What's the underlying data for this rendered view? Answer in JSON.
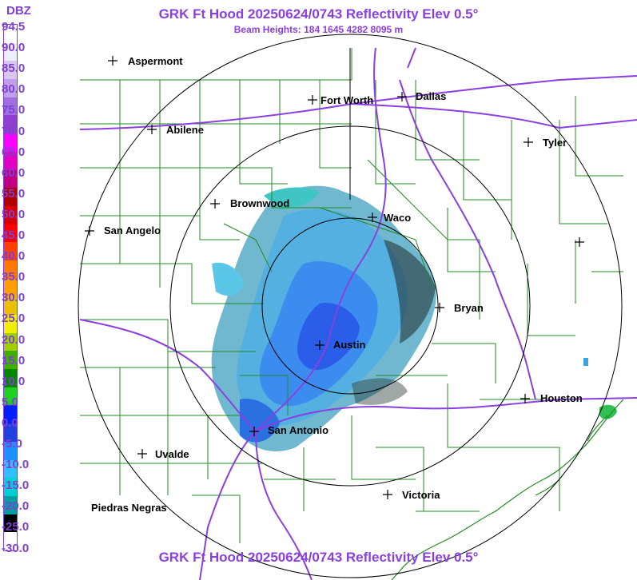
{
  "title": "GRK Ft Hood 20250624/0743 Reflectivity Elev 0.5°",
  "subtitle": "Beam Heights: 184 1645 4282 8095 m",
  "bottom_title": "GRK Ft Hood 20250624/0743 Reflectivity Elev 0.5°",
  "legend": {
    "title": "DBZ",
    "ticks": [
      "94.5",
      "90.0",
      "85.0",
      "80.0",
      "75.0",
      "70.0",
      "65.0",
      "60.0",
      "55.0",
      "50.0",
      "45.0",
      "40.0",
      "35.0",
      "30.0",
      "25.0",
      "20.0",
      "15.0",
      "10.0",
      "5.0",
      "0.0",
      "-5.0",
      "-10.0",
      "-15.0",
      "-20.0",
      "-25.0",
      "-30.0"
    ],
    "colors": [
      "#ffffff",
      "#eeeeff",
      "#d8c8f0",
      "#c0a0e8",
      "#a070e0",
      "#9040d0",
      "#ff00ff",
      "#e000c0",
      "#c00080",
      "#b00000",
      "#d80000",
      "#ff0000",
      "#ff4000",
      "#ff7800",
      "#ffa000",
      "#e8c000",
      "#f0f000",
      "#a0d000",
      "#40b000",
      "#008800",
      "#20d020",
      "#0020ff",
      "#2040e0",
      "#2090ff",
      "#30c0ff",
      "#00d0d0",
      "#00a0a0",
      "#000000",
      "#ffffff"
    ],
    "color_hex_accent": "#7f3fd0"
  },
  "cities": [
    {
      "name": "Aspermont"
    },
    {
      "name": "Fort Worth"
    },
    {
      "name": "Dallas"
    },
    {
      "name": "Abilene"
    },
    {
      "name": "Tyler"
    },
    {
      "name": "Brownwood"
    },
    {
      "name": "Waco"
    },
    {
      "name": "San Angelo"
    },
    {
      "name": "Bryan"
    },
    {
      "name": "Austin"
    },
    {
      "name": "Houston"
    },
    {
      "name": "San Antonio"
    },
    {
      "name": "Uvalde"
    },
    {
      "name": "Victoria"
    },
    {
      "name": "Piedras Negras"
    }
  ]
}
